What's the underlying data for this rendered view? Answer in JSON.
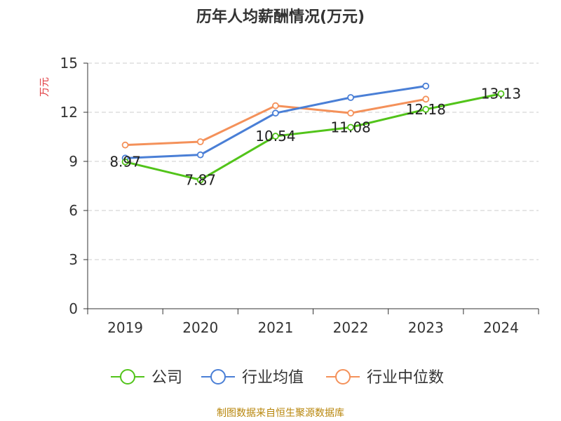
{
  "chart_data": {
    "type": "line",
    "title": "历年人均薪酬情况(万元)",
    "ylabel": "万元",
    "xlabel": "",
    "categories": [
      "2019",
      "2020",
      "2021",
      "2022",
      "2023",
      "2024"
    ],
    "ylim": [
      0,
      15
    ],
    "yticks": [
      0,
      3,
      6,
      9,
      12,
      15
    ],
    "grid": true,
    "legend": "bottom",
    "series": [
      {
        "name": "公司",
        "color": "#52c41a",
        "values": [
          8.97,
          7.87,
          10.54,
          11.08,
          12.18,
          13.13
        ],
        "labels": [
          "8.97",
          "7.87",
          "10.54",
          "11.08",
          "12.18",
          "13.13"
        ]
      },
      {
        "name": "行业均值",
        "color": "#4a7fd6",
        "values": [
          9.2,
          9.4,
          11.95,
          12.9,
          13.6,
          null
        ]
      },
      {
        "name": "行业中位数",
        "color": "#f4915a",
        "values": [
          10.0,
          10.2,
          12.4,
          11.95,
          12.8,
          null
        ]
      }
    ]
  },
  "footer": {
    "source": "制图数据来自恒生聚源数据库"
  }
}
